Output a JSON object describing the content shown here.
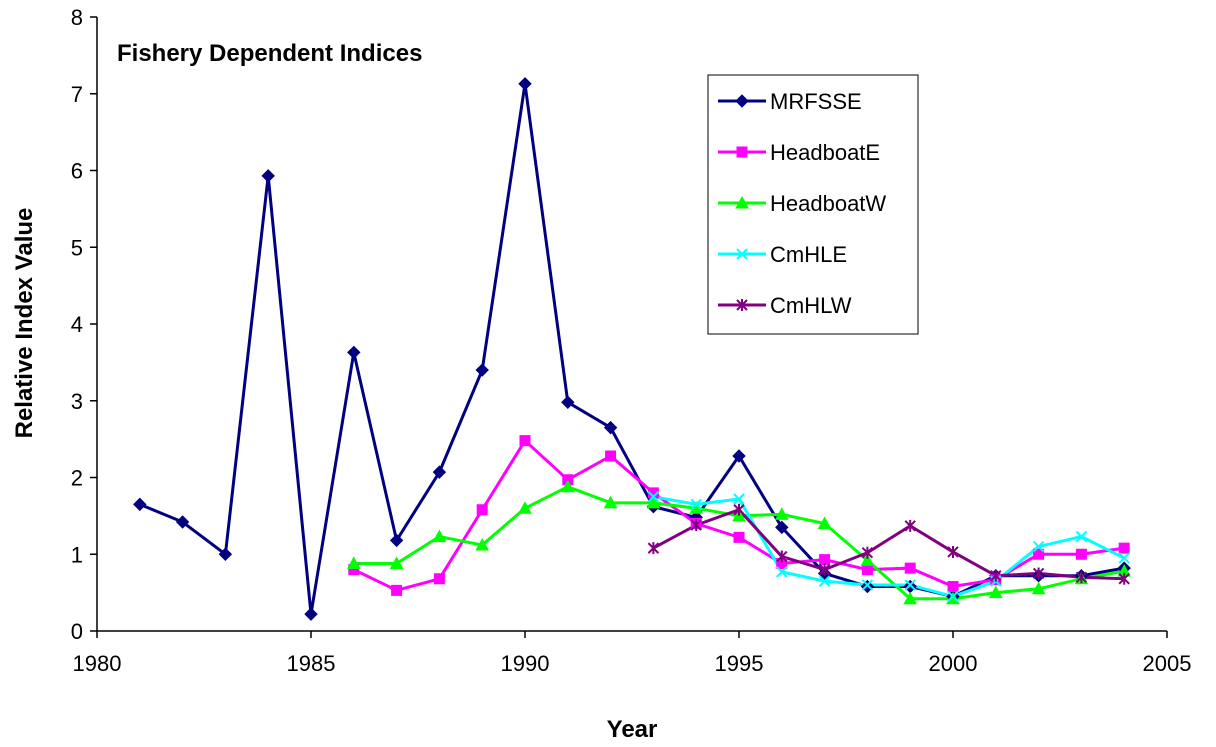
{
  "chart_data": {
    "type": "line",
    "title": "Fishery Dependent Indices",
    "x_label": "Year",
    "y_label": "Relative Index Value",
    "x": [
      1981,
      1982,
      1983,
      1984,
      1985,
      1986,
      1987,
      1988,
      1989,
      1990,
      1991,
      1992,
      1993,
      1994,
      1995,
      1996,
      1997,
      1998,
      1999,
      2000,
      2001,
      2002,
      2003,
      2004
    ],
    "series": [
      {
        "name": "MRFSSE",
        "color": "#000080",
        "marker": "diamond",
        "values": [
          1.65,
          1.42,
          1.0,
          5.93,
          0.22,
          3.63,
          1.18,
          2.07,
          3.4,
          7.13,
          2.98,
          2.65,
          1.62,
          1.48,
          2.28,
          1.35,
          0.75,
          0.58,
          0.58,
          0.45,
          0.72,
          0.72,
          0.72,
          0.82
        ]
      },
      {
        "name": "HeadboatE",
        "color": "#ff00ff",
        "marker": "square",
        "values": [
          null,
          null,
          null,
          null,
          null,
          0.8,
          0.53,
          0.68,
          1.58,
          2.48,
          1.97,
          2.28,
          1.8,
          1.4,
          1.22,
          0.88,
          0.93,
          0.8,
          0.82,
          0.58,
          0.67,
          1.0,
          1.0,
          1.08
        ]
      },
      {
        "name": "HeadboatW",
        "color": "#00ff00",
        "marker": "triangle",
        "values": [
          null,
          null,
          null,
          null,
          null,
          0.88,
          0.88,
          1.23,
          1.12,
          1.6,
          1.88,
          1.67,
          1.67,
          1.6,
          1.5,
          1.52,
          1.4,
          0.92,
          0.42,
          0.42,
          0.5,
          0.55,
          0.68,
          0.78
        ]
      },
      {
        "name": "CmHLE",
        "color": "#00ffff",
        "marker": "x",
        "values": [
          null,
          null,
          null,
          null,
          null,
          null,
          null,
          null,
          null,
          null,
          null,
          null,
          1.75,
          1.65,
          1.72,
          0.77,
          0.65,
          0.6,
          0.6,
          0.45,
          0.65,
          1.1,
          1.23,
          0.95
        ]
      },
      {
        "name": "CmHLW",
        "color": "#800080",
        "marker": "asterisk",
        "values": [
          null,
          null,
          null,
          null,
          null,
          null,
          null,
          null,
          null,
          null,
          null,
          null,
          1.08,
          1.38,
          1.58,
          0.97,
          0.8,
          1.02,
          1.37,
          1.03,
          0.72,
          0.75,
          0.7,
          0.68
        ]
      }
    ],
    "xlim": [
      1980,
      2005
    ],
    "ylim": [
      0,
      8
    ],
    "xticks": [
      1980,
      1985,
      1990,
      1995,
      2000,
      2005
    ],
    "yticks": [
      0,
      1,
      2,
      3,
      4,
      5,
      6,
      7,
      8
    ],
    "grid": false,
    "legend": "upper right"
  }
}
